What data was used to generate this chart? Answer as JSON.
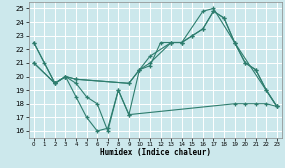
{
  "title": "",
  "xlabel": "Humidex (Indice chaleur)",
  "background_color": "#cce8ec",
  "grid_color": "#ffffff",
  "line_color": "#2e7d6e",
  "xlim": [
    -0.5,
    23.5
  ],
  "ylim": [
    15.5,
    25.5
  ],
  "yticks": [
    16,
    17,
    18,
    19,
    20,
    21,
    22,
    23,
    24,
    25
  ],
  "xticks": [
    0,
    1,
    2,
    3,
    4,
    5,
    6,
    7,
    8,
    9,
    10,
    11,
    12,
    13,
    14,
    15,
    16,
    17,
    18,
    19,
    20,
    21,
    22,
    23
  ],
  "line1_x": [
    0,
    1,
    2,
    3,
    4,
    5,
    6,
    7,
    8,
    9,
    10,
    11,
    12,
    13,
    14,
    15,
    16,
    17,
    18,
    19,
    20,
    21,
    22,
    23
  ],
  "line1_y": [
    22.5,
    21.0,
    19.5,
    20.0,
    18.5,
    17.0,
    16.0,
    16.2,
    19.0,
    17.2,
    20.5,
    20.8,
    22.5,
    22.5,
    22.5,
    23.0,
    23.5,
    24.8,
    24.3,
    22.5,
    21.0,
    20.5,
    19.0,
    17.8
  ],
  "line2_x": [
    0,
    2,
    3,
    4,
    9,
    10,
    11,
    13,
    14,
    15,
    16,
    17,
    18,
    19,
    20,
    21,
    22,
    23
  ],
  "line2_y": [
    21.0,
    19.5,
    20.0,
    19.8,
    19.5,
    20.5,
    21.0,
    22.5,
    22.5,
    23.0,
    23.5,
    24.8,
    24.3,
    22.5,
    21.0,
    20.5,
    19.0,
    17.8
  ],
  "line3_x": [
    0,
    2,
    3,
    4,
    9,
    10,
    11,
    13,
    14,
    16,
    17,
    19,
    23
  ],
  "line3_y": [
    22.5,
    19.5,
    20.0,
    19.8,
    19.5,
    20.5,
    21.5,
    22.5,
    22.5,
    24.8,
    25.0,
    22.5,
    17.8
  ],
  "line4_x": [
    0,
    2,
    3,
    4,
    5,
    6,
    7,
    8,
    9,
    19,
    20,
    21,
    22,
    23
  ],
  "line4_y": [
    21.0,
    19.5,
    20.0,
    19.5,
    18.5,
    18.0,
    16.0,
    19.0,
    17.2,
    18.0,
    18.0,
    18.0,
    18.0,
    17.8
  ]
}
